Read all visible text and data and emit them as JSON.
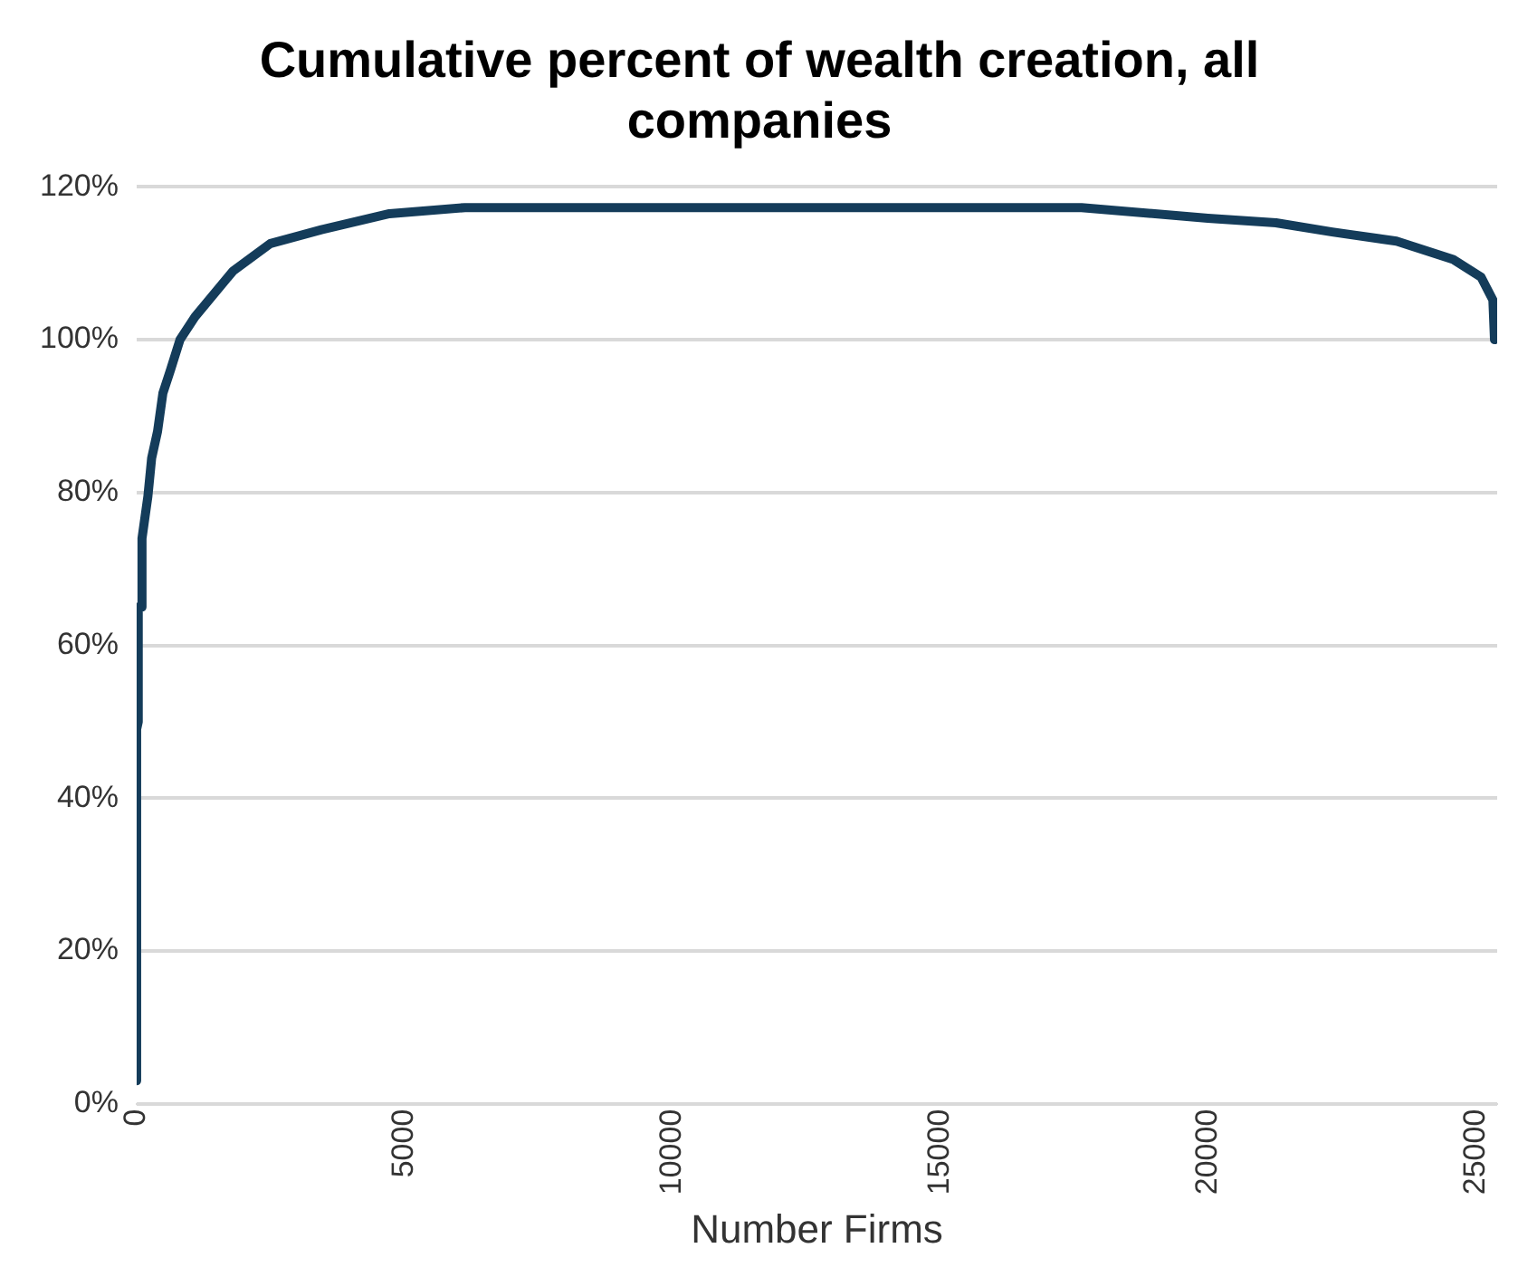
{
  "chart_data": {
    "type": "line",
    "title": "Cumulative percent of wealth creation, all companies",
    "xlabel": "Number Firms",
    "xlim": [
      0,
      25400
    ],
    "xticks": [
      0,
      5000,
      10000,
      15000,
      20000,
      25000
    ],
    "ylim": [
      0,
      120
    ],
    "yticks": [
      {
        "value": 0,
        "label": "0%"
      },
      {
        "value": 20,
        "label": "20%"
      },
      {
        "value": 40,
        "label": "40%"
      },
      {
        "value": 60,
        "label": "60%"
      },
      {
        "value": 80,
        "label": "80%"
      },
      {
        "value": 100,
        "label": "100%"
      },
      {
        "value": 120,
        "label": "120%"
      }
    ],
    "grid": "y",
    "legend": false,
    "marker": "none",
    "line_style": "solid",
    "series": [
      {
        "color": "#143c5a",
        "x": [
          0,
          0,
          30,
          30,
          100,
          100,
          210,
          280,
          390,
          490,
          630,
          810,
          1090,
          1800,
          2500,
          3450,
          4720,
          6130,
          17640,
          20000,
          21270,
          22320,
          23520,
          24580,
          25100,
          25320,
          25350
        ],
        "values": [
          3,
          49,
          50,
          65,
          65,
          74,
          79.5,
          84.5,
          88,
          93,
          96,
          100,
          103,
          109,
          112.6,
          114.4,
          116.5,
          117.3,
          117.3,
          115.9,
          115.3,
          114.1,
          112.9,
          110.5,
          108.2,
          105.2,
          100
        ]
      }
    ]
  }
}
